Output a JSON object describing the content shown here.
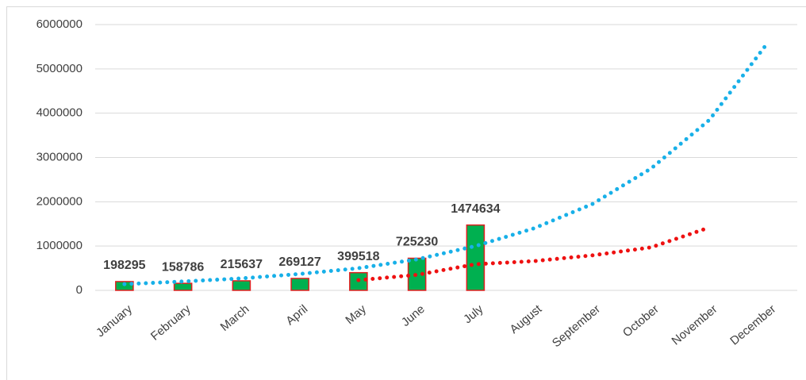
{
  "chart_data": {
    "type": "bar",
    "categories": [
      "January",
      "February",
      "March",
      "April",
      "May",
      "June",
      "July",
      "August",
      "September",
      "October",
      "November",
      "December"
    ],
    "values": [
      198295,
      158786,
      215637,
      269127,
      399518,
      725230,
      1474634,
      null,
      null,
      null,
      null,
      null
    ],
    "color": "#00b050",
    "edge_color": "#e02020",
    "trends": [
      {
        "color": "#18b0e8",
        "values": [
          140000,
          200000,
          270000,
          370000,
          500000,
          700000,
          1000000,
          1400000,
          1950000,
          2750000,
          3850000,
          5600000
        ]
      },
      {
        "color": "#ee1111",
        "values": [
          null,
          null,
          null,
          null,
          230000,
          350000,
          590000,
          660000,
          790000,
          970000,
          1420000,
          null
        ]
      }
    ],
    "ylim": [
      0,
      6000000
    ],
    "yticks": [
      0,
      1000000,
      2000000,
      3000000,
      4000000,
      5000000,
      6000000
    ],
    "grid": true
  }
}
